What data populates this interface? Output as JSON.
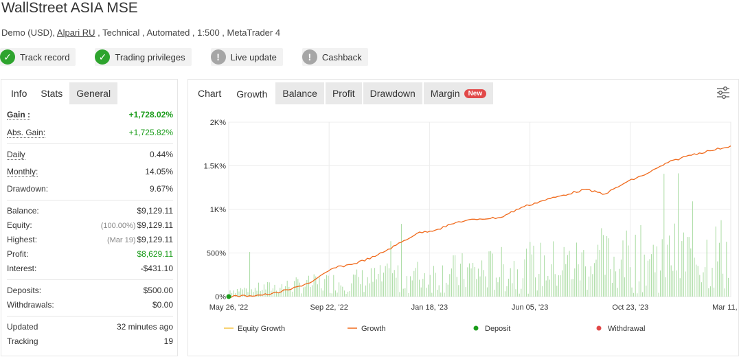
{
  "header": {
    "title": "WallStreet ASIA MSE",
    "subtitle_before": "Demo (USD), ",
    "broker_link": "Alpari RU",
    "subtitle_after": " , Technical , Automated , 1:500 , MetaTrader 4"
  },
  "badges": [
    {
      "label": "Track record",
      "status": "ok",
      "icon": "check-icon"
    },
    {
      "label": "Trading privileges",
      "status": "ok",
      "icon": "check-icon"
    },
    {
      "label": "Live update",
      "status": "warn",
      "icon": "exclamation-icon"
    },
    {
      "label": "Cashback",
      "status": "warn",
      "icon": "exclamation-icon"
    }
  ],
  "left_tabs": [
    "Info",
    "Stats",
    "General"
  ],
  "stats": {
    "gain": {
      "label": "Gain :",
      "value": "+1,728.02%"
    },
    "abs_gain": {
      "label": "Abs. Gain:",
      "value": "+1,725.82%"
    },
    "daily": {
      "label": "Daily",
      "value": "0.44%"
    },
    "monthly": {
      "label": "Monthly:",
      "value": "14.05%"
    },
    "drawdown": {
      "label": "Drawdown:",
      "value": "9.67%"
    },
    "balance": {
      "label": "Balance:",
      "value": "$9,129.11"
    },
    "equity": {
      "label": "Equity:",
      "prefix": "(100.00%)",
      "value": "$9,129.11"
    },
    "highest": {
      "label": "Highest:",
      "prefix": "(Mar 19)",
      "value": "$9,129.11"
    },
    "profit": {
      "label": "Profit:",
      "value": "$8,629.11"
    },
    "interest": {
      "label": "Interest:",
      "value": "-$431.10"
    },
    "deposits": {
      "label": "Deposits:",
      "value": "$500.00"
    },
    "withdrawals": {
      "label": "Withdrawals:",
      "value": "$0.00"
    },
    "updated": {
      "label": "Updated",
      "value": "32 minutes ago"
    },
    "tracking": {
      "label": "Tracking",
      "value": "19"
    }
  },
  "right_tabs": {
    "chart": "Chart",
    "growth": "Growth",
    "balance": "Balance",
    "profit": "Profit",
    "drawdown": "Drawdown",
    "margin": "Margin",
    "new_badge": "New"
  },
  "colors": {
    "growth_line": "#f06a1c",
    "equity_line": "#f5c242",
    "bars": "#a8dba0",
    "deposit": "#1a9c1a",
    "withdrawal": "#e14848",
    "green_value": "#1a9c1a"
  },
  "chart_data": {
    "type": "line",
    "title": "",
    "xlabel": "",
    "ylabel": "",
    "y_tick_labels": [
      "2K%",
      "1.5K%",
      "1K%",
      "500%",
      "0%"
    ],
    "y_ticks": [
      2000,
      1500,
      1000,
      500,
      0
    ],
    "ylim": [
      0,
      2000
    ],
    "x_tick_labels": [
      "May 26, '22",
      "Sep 22, '22",
      "Jan 18, '23",
      "Jun 05, '23",
      "Oct 23, '23",
      "Mar 11, '24"
    ],
    "grid": true,
    "legend_position": "bottom",
    "series": [
      {
        "name": "Equity Growth",
        "values": []
      },
      {
        "name": "Growth",
        "x": [
          "May 26, '22",
          "Jun 26, '22",
          "Jul 26, '22",
          "Aug 26, '22",
          "Sep 22, '22",
          "Oct 22, '22",
          "Nov 22, '22",
          "Dec 22, '22",
          "Jan 18, '23",
          "Feb 18, '23",
          "Mar 18, '23",
          "Apr 18, '23",
          "May 18, '23",
          "Jun 05, '23",
          "Jul 05, '23",
          "Aug 05, '23",
          "Sep 05, '23",
          "Oct 05, '23",
          "Oct 23, '23",
          "Nov 23, '23",
          "Dec 23, '23",
          "Jan 23, '24",
          "Feb 23, '24",
          "Mar 11, '24",
          "Mar 19, '24"
        ],
        "values": [
          0,
          20,
          45,
          80,
          180,
          330,
          390,
          480,
          600,
          720,
          790,
          870,
          900,
          930,
          1000,
          1080,
          1170,
          1250,
          1200,
          1300,
          1390,
          1550,
          1610,
          1680,
          1728
        ]
      }
    ],
    "legend": [
      {
        "name": "Equity Growth"
      },
      {
        "name": "Growth"
      },
      {
        "name": "Deposit"
      },
      {
        "name": "Withdrawal"
      }
    ]
  }
}
